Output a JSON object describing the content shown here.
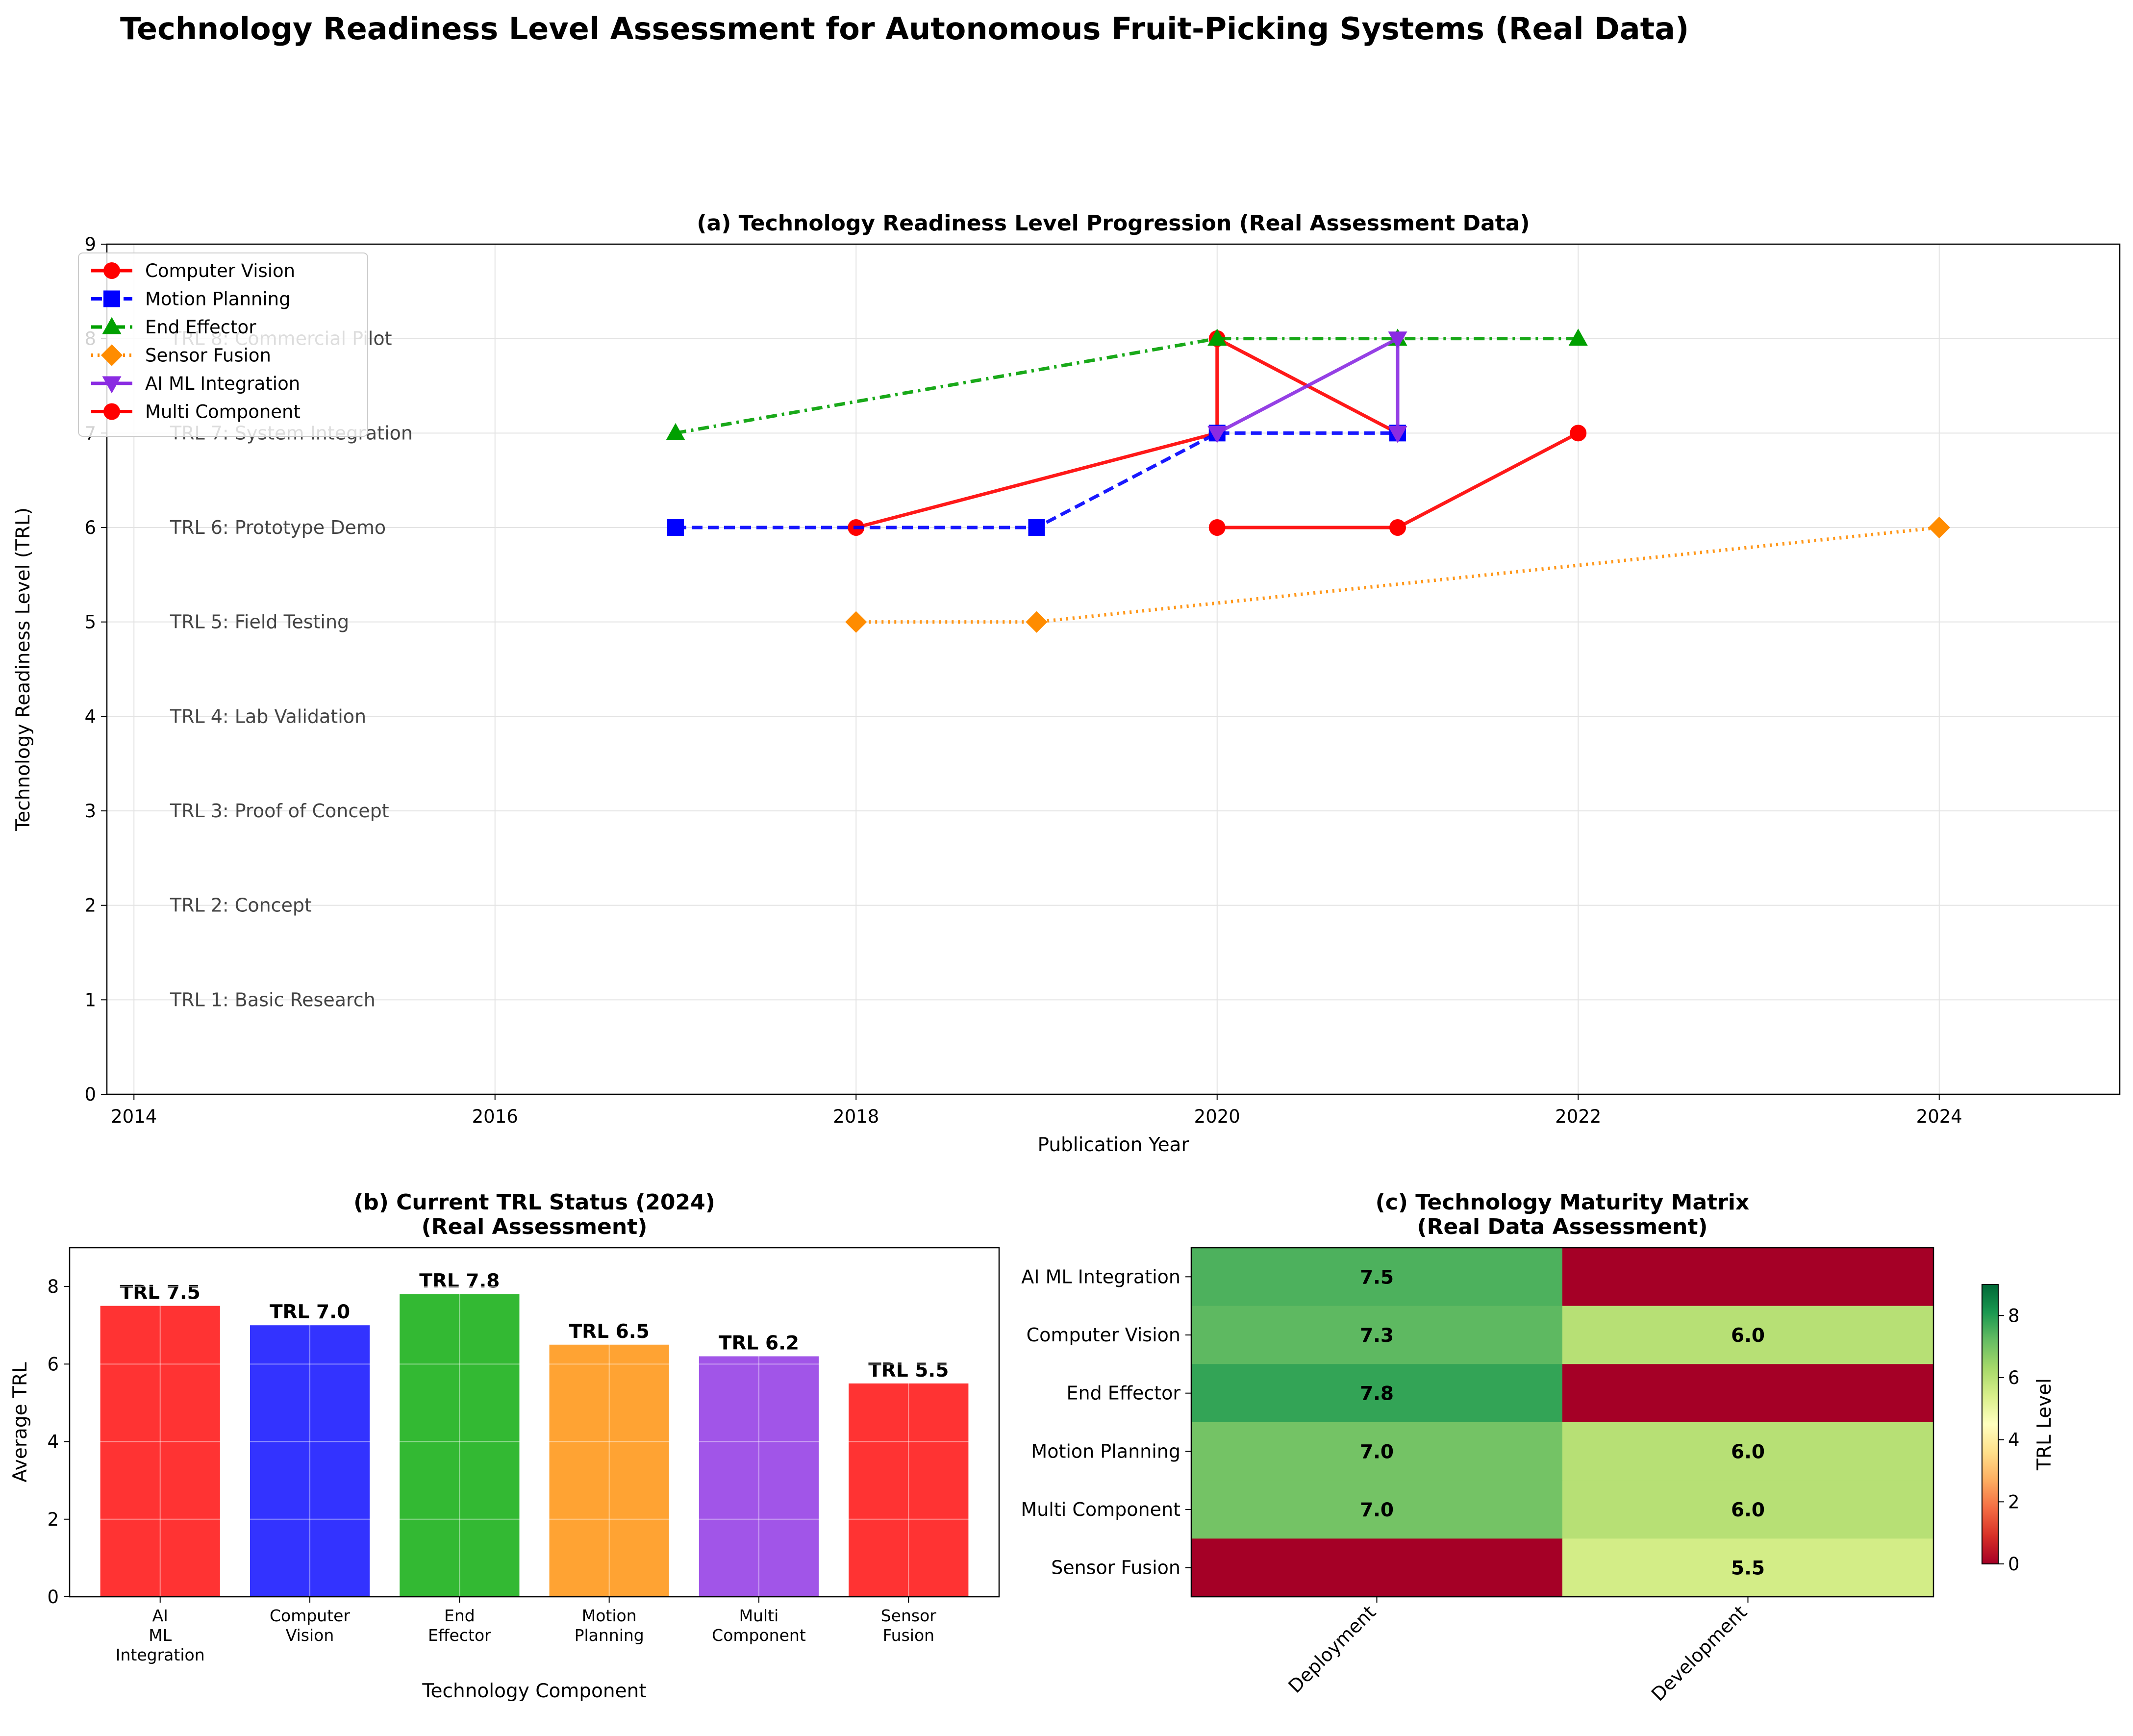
{
  "figure": {
    "title": "Technology Readiness Level Assessment for Autonomous Fruit-Picking Systems (Real Data)"
  },
  "chart_data": [
    {
      "type": "line",
      "title": "(a) Technology Readiness Level Progression (Real Assessment Data)",
      "xlabel": "Publication Year",
      "ylabel": "Technology Readiness Level (TRL)",
      "xlim": [
        2013.85,
        2025
      ],
      "ylim": [
        0,
        9
      ],
      "xticks": [
        2014,
        2016,
        2018,
        2020,
        2022,
        2024
      ],
      "yticks": [
        0,
        1,
        2,
        3,
        4,
        5,
        6,
        7,
        8,
        9
      ],
      "grid": true,
      "legend_position": "top-left",
      "level_labels": [
        {
          "level": 1,
          "text": "TRL 1: Basic Research"
        },
        {
          "level": 2,
          "text": "TRL 2: Concept"
        },
        {
          "level": 3,
          "text": "TRL 3: Proof of Concept"
        },
        {
          "level": 4,
          "text": "TRL 4: Lab Validation"
        },
        {
          "level": 5,
          "text": "TRL 5: Field Testing"
        },
        {
          "level": 6,
          "text": "TRL 6: Prototype Demo"
        },
        {
          "level": 7,
          "text": "TRL 7: System Integration"
        },
        {
          "level": 8,
          "text": "TRL 8: Commercial Pilot"
        }
      ],
      "series": [
        {
          "name": "Computer Vision",
          "color": "#ff0000",
          "dash": "solid",
          "marker": "circle",
          "points": [
            [
              2018,
              6
            ],
            [
              2020,
              7
            ],
            [
              2020,
              8
            ],
            [
              2021,
              7
            ]
          ]
        },
        {
          "name": "Motion Planning",
          "color": "#0000ff",
          "dash": "dashed",
          "marker": "square",
          "points": [
            [
              2017,
              6
            ],
            [
              2019,
              6
            ],
            [
              2020,
              7
            ],
            [
              2021,
              7
            ]
          ]
        },
        {
          "name": "End Effector",
          "color": "#00a000",
          "dash": "dashdot",
          "marker": "triangle-up",
          "points": [
            [
              2017,
              7
            ],
            [
              2020,
              8
            ],
            [
              2021,
              8
            ],
            [
              2022,
              8
            ]
          ]
        },
        {
          "name": "Sensor Fusion",
          "color": "#ff8c00",
          "dash": "dotted",
          "marker": "diamond",
          "points": [
            [
              2018,
              5
            ],
            [
              2019,
              5
            ],
            [
              2024,
              6
            ]
          ]
        },
        {
          "name": "AI ML Integration",
          "color": "#8a2be2",
          "dash": "solid",
          "marker": "triangle-down",
          "points": [
            [
              2020,
              7
            ],
            [
              2021,
              8
            ],
            [
              2021,
              7
            ]
          ]
        },
        {
          "name": "Multi Component",
          "color": "#ff0000",
          "dash": "solid",
          "marker": "circle",
          "points": [
            [
              2020,
              6
            ],
            [
              2021,
              6
            ],
            [
              2022,
              7
            ]
          ]
        }
      ]
    },
    {
      "type": "bar",
      "title": "(b) Current TRL Status (2024)\n(Real Assessment)",
      "xlabel": "Technology Component",
      "ylabel": "Average TRL",
      "ylim": [
        0,
        9
      ],
      "yticks": [
        0,
        2,
        4,
        6,
        8
      ],
      "grid": true,
      "categories": [
        "AI\nML\nIntegration",
        "Computer\nVision",
        "End\nEffector",
        "Motion\nPlanning",
        "Multi\nComponent",
        "Sensor\nFusion"
      ],
      "values": [
        7.5,
        7.0,
        7.8,
        6.5,
        6.2,
        5.5
      ],
      "data_labels": [
        "TRL 7.5",
        "TRL 7.0",
        "TRL 7.8",
        "TRL 6.5",
        "TRL 6.2",
        "TRL 5.5"
      ],
      "colors": [
        "#ff0000",
        "#0000ff",
        "#00a800",
        "#ff8c00",
        "#8a2be2",
        "#ff0000"
      ]
    },
    {
      "type": "heatmap",
      "title": "(c) Technology Maturity Matrix\n(Real Data Assessment)",
      "rows": [
        "AI ML Integration",
        "Computer Vision",
        "End Effector",
        "Motion Planning",
        "Multi Component",
        "Sensor Fusion"
      ],
      "columns": [
        "Deployment",
        "Development"
      ],
      "values": [
        [
          7.5,
          0
        ],
        [
          7.3,
          6.0
        ],
        [
          7.8,
          0
        ],
        [
          7.0,
          6.0
        ],
        [
          7.0,
          6.0
        ],
        [
          0,
          5.5
        ]
      ],
      "cell_labels": [
        [
          "7.5",
          ""
        ],
        [
          "7.3",
          "6.0"
        ],
        [
          "7.8",
          ""
        ],
        [
          "7.0",
          "6.0"
        ],
        [
          "7.0",
          "6.0"
        ],
        [
          "",
          "5.5"
        ]
      ],
      "colormap": "RdYlGn",
      "vmin": 0,
      "vmax": 9,
      "colorbar_label": "TRL Level",
      "colorbar_ticks": [
        0,
        2,
        4,
        6,
        8
      ]
    }
  ]
}
